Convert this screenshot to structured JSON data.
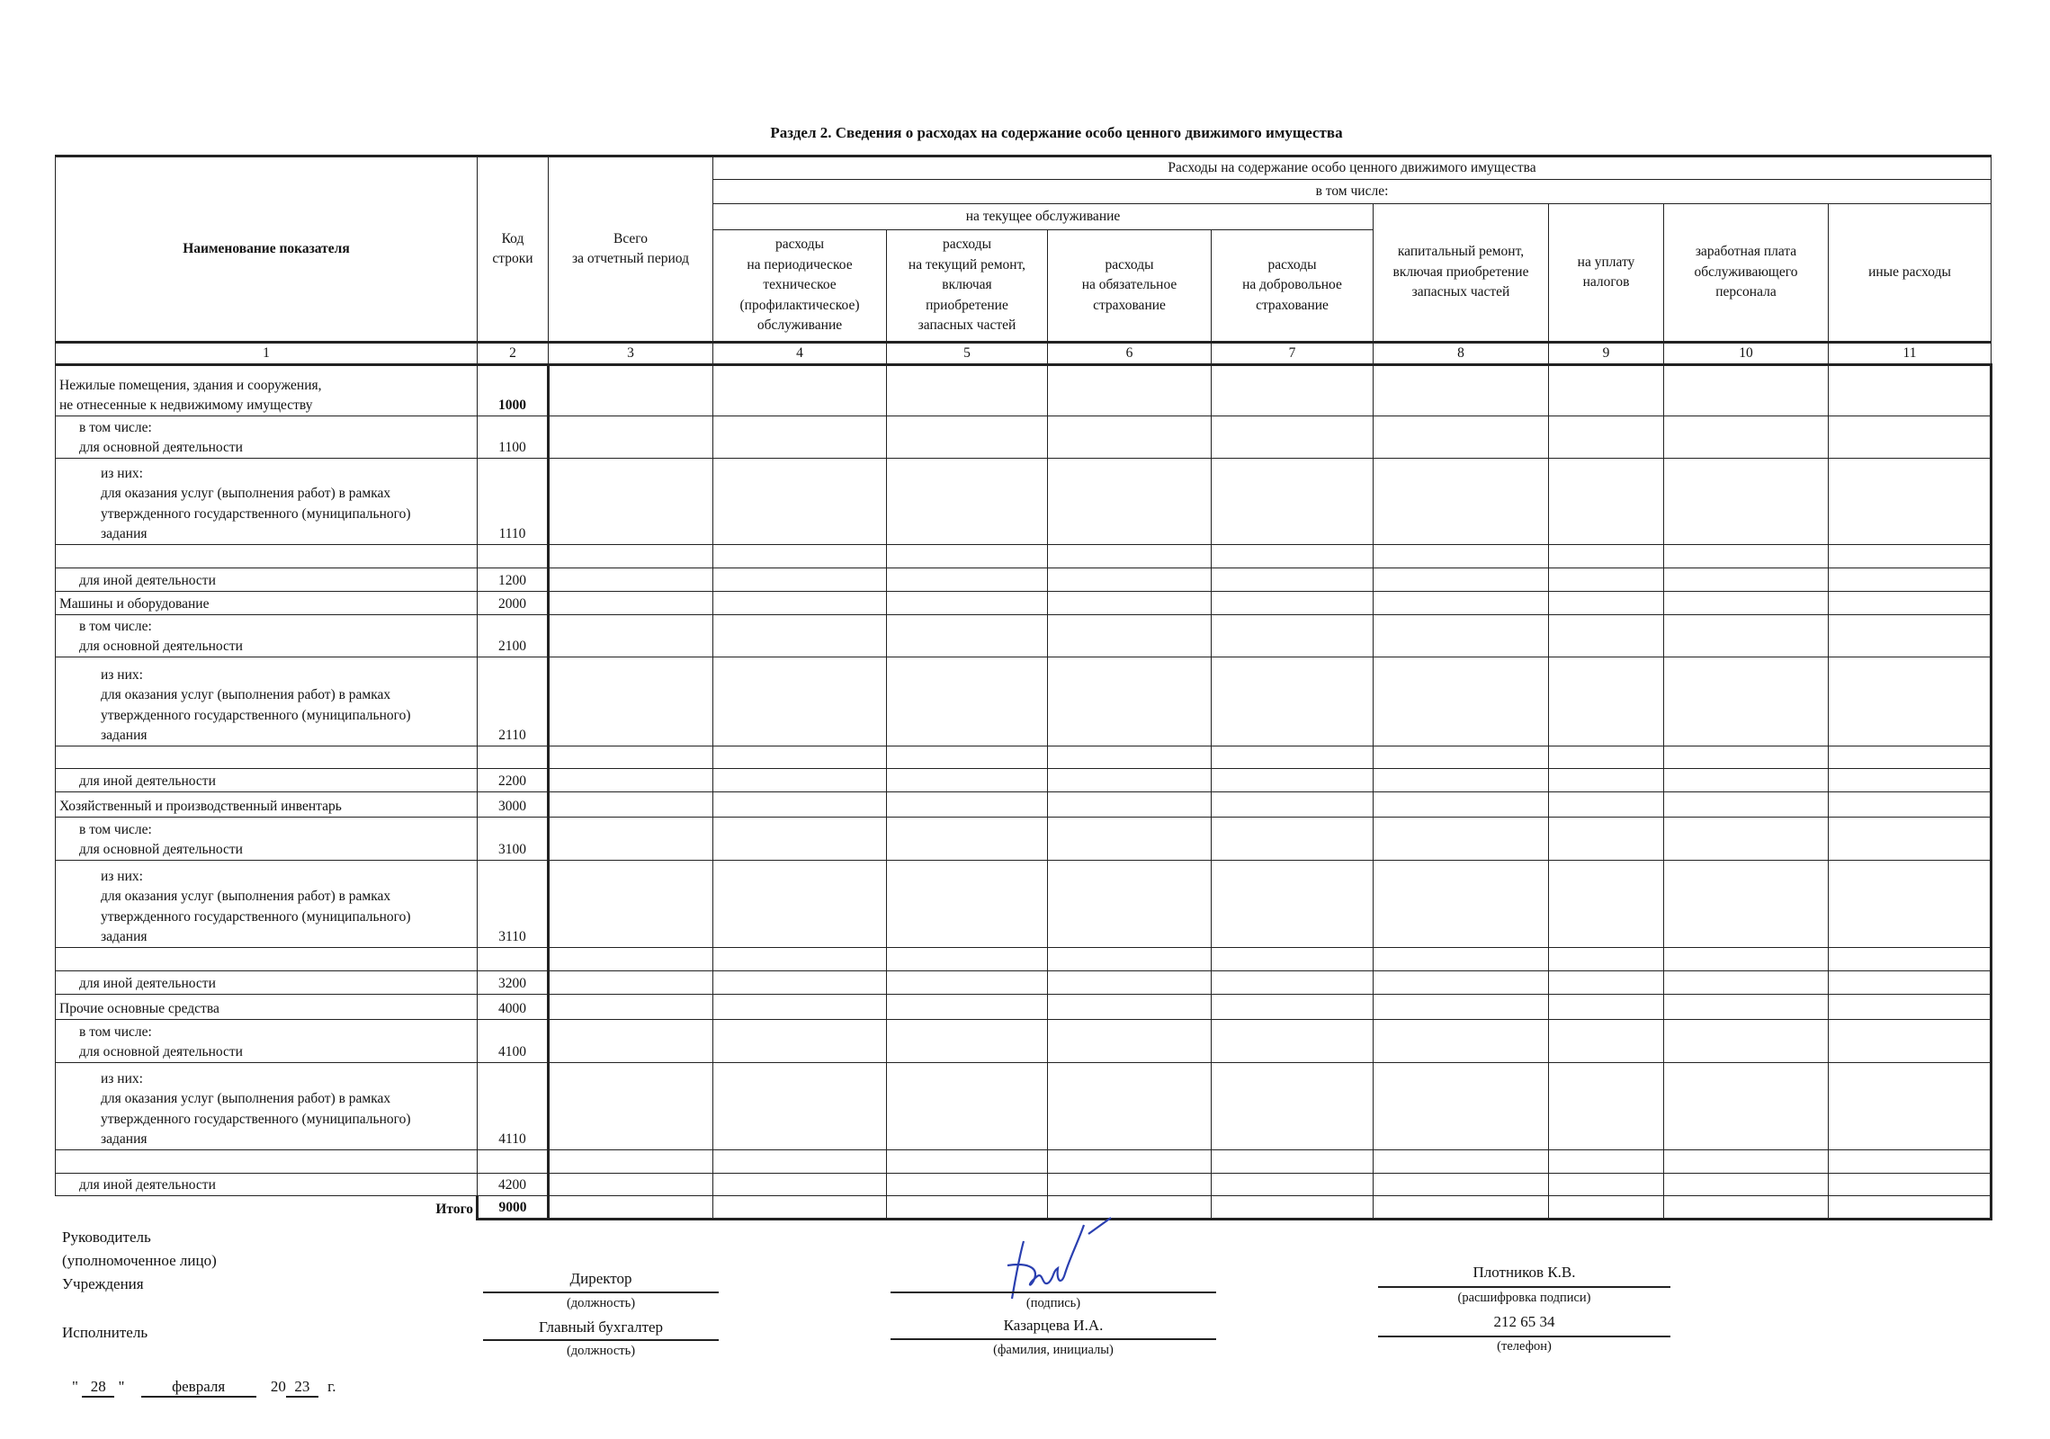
{
  "title": "Раздел 2. Сведения о расходах на содержание особо ценного движимого имущества",
  "header": {
    "name": "Наименование показателя",
    "code": "Код\nстроки",
    "total": "Всего\nза отчетный период",
    "group": "Расходы на содержание особо ценного движимого имущества",
    "including": "в том числе:",
    "current": "на текущее обслуживание",
    "cols": [
      "расходы\nна периодическое\nтехническое\n(профилактическое)\nобслуживание",
      "расходы\nна текущий ремонт,\nвключая\nприобретение\nзапасных частей",
      "расходы\nна обязательное\nстрахование",
      "расходы\nна добровольное\nстрахование",
      "капитальный ремонт,\nвключая приобретение\nзапасных частей",
      "на уплату\nналогов",
      "заработная плата\nобслуживающего\nперсонала",
      "иные расходы"
    ],
    "numbers": [
      "1",
      "2",
      "3",
      "4",
      "5",
      "6",
      "7",
      "8",
      "9",
      "10",
      "11"
    ]
  },
  "rows": [
    {
      "name": "Нежилые помещения, здания и сооружения,\nне отнесенные к недвижимому имуществу",
      "code": "1000",
      "level": 0,
      "bold": true,
      "h": 57
    },
    {
      "name": "в том числе:\nдля основной деятельности",
      "code": "1100",
      "level": 1,
      "h": 47
    },
    {
      "name": "из них:\nдля оказания услуг (выполнения работ) в рамках\nутвержденного государственного (муниципального)\nзадания",
      "code": "1110",
      "level": 2,
      "h": 96
    },
    {
      "name": "",
      "code": "",
      "level": 0,
      "h": 26
    },
    {
      "name": "для иной деятельности",
      "code": "1200",
      "level": 1,
      "h": 26
    },
    {
      "name": "Машины и оборудование",
      "code": "2000",
      "level": 0,
      "h": 26
    },
    {
      "name": "в том числе:\nдля основной деятельности",
      "code": "2100",
      "level": 1,
      "h": 47
    },
    {
      "name": "из них:\nдля оказания услуг (выполнения работ) в рамках\nутвержденного государственного (муниципального)\nзадания",
      "code": "2110",
      "level": 2,
      "h": 99
    },
    {
      "name": "",
      "code": "",
      "level": 0,
      "h": 25
    },
    {
      "name": "для иной деятельности",
      "code": "2200",
      "level": 1,
      "h": 26
    },
    {
      "name": "Хозяйственный и производственный инвентарь",
      "code": "3000",
      "level": 0,
      "h": 28
    },
    {
      "name": "в том числе:\nдля основной деятельности",
      "code": "3100",
      "level": 1,
      "h": 48
    },
    {
      "name": "из них:\nдля оказания услуг (выполнения работ) в рамках\nутвержденного государственного (муниципального)\nзадания",
      "code": "3110",
      "level": 2,
      "h": 97
    },
    {
      "name": "",
      "code": "",
      "level": 0,
      "h": 26
    },
    {
      "name": "для иной деятельности",
      "code": "3200",
      "level": 1,
      "h": 26
    },
    {
      "name": "Прочие основные средства",
      "code": "4000",
      "level": 0,
      "h": 28
    },
    {
      "name": "в том числе:\nдля основной деятельности",
      "code": "4100",
      "level": 1,
      "h": 48
    },
    {
      "name": "из них:\nдля оказания услуг (выполнения работ) в рамках\nутвержденного государственного (муниципального)\nзадания",
      "code": "4110",
      "level": 2,
      "h": 97
    },
    {
      "name": "",
      "code": "",
      "level": 0,
      "h": 26
    },
    {
      "name": "для иной деятельности",
      "code": "4200",
      "level": 1,
      "h": 25
    },
    {
      "name": "Итого",
      "code": "9000",
      "level": 0,
      "bold": true,
      "total": true,
      "h": 26
    }
  ],
  "signatures": {
    "head_label": "Руководитель\n(уполномоченное лицо)\nУчреждения",
    "head_position": "Директор",
    "position_caption": "(должность)",
    "signature_caption": "(подпись)",
    "head_name": "Плотников К.В.",
    "name_caption": "(расшифровка подписи)",
    "executor_label": "Исполнитель",
    "executor_position": "Главный бухгалтер",
    "executor_name": "Казарцева И.А.",
    "executor_name_caption": "(фамилия, инициалы)",
    "phone": "212 65 34",
    "phone_caption": "(телефон)",
    "signature_color": "#2a3fb0"
  },
  "date": {
    "quote_open": "\"",
    "day": "28",
    "quote_close": "\"",
    "month": "февраля",
    "year_prefix": "20",
    "year": "23",
    "year_suffix": "г."
  }
}
